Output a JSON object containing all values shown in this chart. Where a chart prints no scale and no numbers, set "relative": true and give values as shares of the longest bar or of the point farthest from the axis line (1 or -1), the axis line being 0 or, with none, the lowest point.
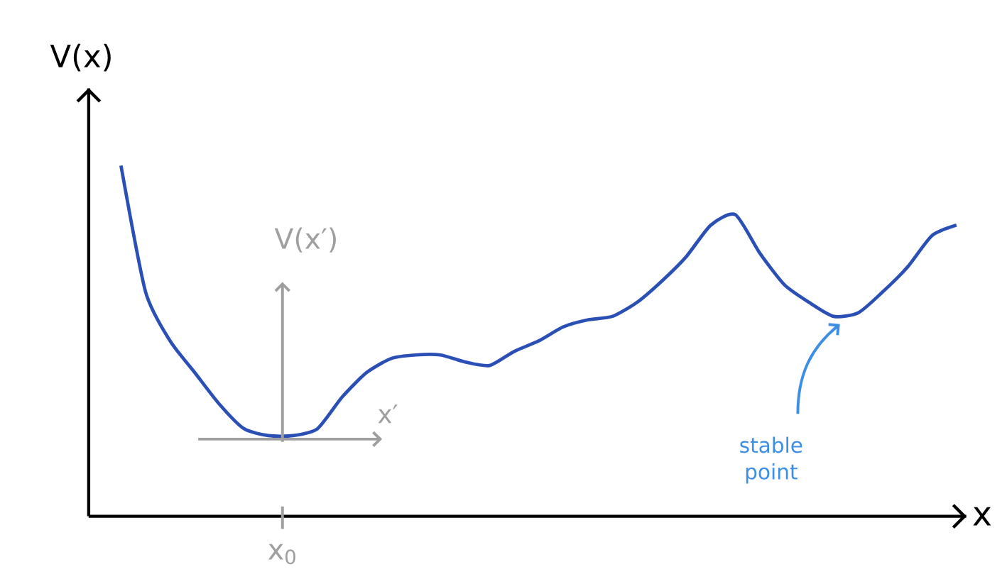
{
  "chart_data": {
    "type": "line",
    "relative": true,
    "xlabel": "x",
    "ylabel": "V(x)",
    "categories": [
      null,
      null,
      null,
      null,
      null,
      null,
      null,
      null,
      null,
      null,
      null,
      null,
      null,
      null,
      null,
      null,
      null,
      null,
      null,
      null,
      null,
      null,
      null,
      null,
      null,
      null,
      null,
      null,
      null,
      null,
      null,
      null,
      null,
      null,
      null
    ],
    "series": [
      {
        "color": "#2a4fb5",
        "values": [
          1.0,
          0.64,
          0.5,
          0.41,
          0.32,
          0.25,
          0.23,
          0.23,
          0.25,
          0.34,
          0.41,
          0.45,
          0.46,
          0.46,
          0.44,
          0.43,
          0.47,
          0.5,
          0.54,
          0.56,
          0.57,
          0.61,
          0.67,
          0.74,
          0.83,
          0.86,
          0.75,
          0.66,
          0.61,
          0.57,
          0.58,
          0.64,
          0.71,
          0.8,
          0.83
        ]
      }
    ],
    "annotations": [
      "V(x′)",
      "x′",
      "x$_{0}$",
      "stable point"
    ]
  }
}
